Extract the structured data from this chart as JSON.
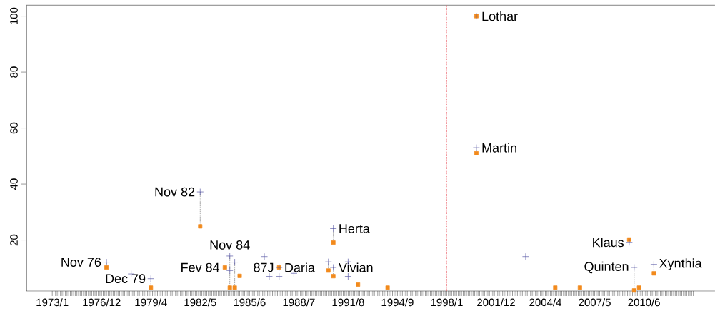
{
  "chart_data": {
    "type": "scatter",
    "categories": [
      "1973/1",
      null,
      null,
      null,
      null,
      null,
      null,
      null,
      null,
      null,
      "1976/12",
      null,
      null,
      null,
      null,
      null,
      null,
      null,
      null,
      null,
      "1979/4",
      null,
      null,
      null,
      null,
      null,
      null,
      null,
      null,
      null,
      "1982/5",
      null,
      null,
      null,
      null,
      null,
      null,
      null,
      null,
      null,
      "1985/6",
      null,
      null,
      null,
      null,
      null,
      null,
      null,
      null,
      null,
      "1988/7",
      null,
      null,
      null,
      null,
      null,
      null,
      null,
      null,
      null,
      "1991/8",
      null,
      null,
      null,
      null,
      null,
      null,
      null,
      null,
      null,
      "1994/9",
      null,
      null,
      null,
      null,
      null,
      null,
      null,
      null,
      null,
      "1998/1",
      null,
      null,
      null,
      null,
      null,
      null,
      null,
      null,
      null,
      "2001/12",
      null,
      null,
      null,
      null,
      null,
      null,
      null,
      null,
      null,
      "2004/4",
      null,
      null,
      null,
      null,
      null,
      null,
      null,
      null,
      null,
      "2007/5",
      null,
      null,
      null,
      null,
      null,
      null,
      null,
      null,
      null,
      "2010/6",
      null,
      null,
      null,
      null,
      null,
      null,
      null,
      null,
      null,
      null
    ],
    "ylim": [
      1.8,
      103.9
    ],
    "yticks": [
      20,
      40,
      60,
      80,
      100
    ],
    "series": [
      {
        "color": "#5a5aa6",
        "marker": "cross",
        "values": [
          null,
          null,
          null,
          null,
          null,
          null,
          null,
          null,
          null,
          null,
          null,
          12.1,
          null,
          null,
          null,
          null,
          7.9,
          null,
          null,
          null,
          6.2,
          null,
          null,
          null,
          null,
          null,
          null,
          null,
          null,
          null,
          37.2,
          null,
          null,
          null,
          null,
          null,
          14.3,
          12.1,
          null,
          null,
          null,
          null,
          null,
          14.1,
          7.0,
          null,
          10.2,
          null,
          null,
          8.1,
          null,
          null,
          null,
          null,
          null,
          null,
          12.2,
          24.1,
          null,
          null,
          12.2,
          null,
          null,
          null,
          null,
          null,
          null,
          null,
          null,
          null,
          null,
          null,
          null,
          null,
          null,
          null,
          null,
          null,
          null,
          null,
          null,
          null,
          null,
          null,
          null,
          null,
          100,
          null,
          null,
          null,
          null,
          null,
          null,
          null,
          null,
          null,
          14.1,
          null,
          null,
          null,
          null,
          null,
          null,
          null,
          null,
          null,
          null,
          null,
          null,
          null,
          null,
          null,
          null,
          null,
          null,
          null,
          null,
          19.2,
          10.2,
          null,
          null,
          null,
          11.3,
          null,
          null,
          null,
          null,
          null,
          null,
          null,
          null
        ]
      },
      {
        "color": "#5a5aa6",
        "marker": "cross",
        "values": [
          null,
          null,
          null,
          null,
          null,
          null,
          null,
          null,
          null,
          null,
          null,
          null,
          null,
          null,
          null,
          null,
          null,
          null,
          null,
          null,
          null,
          null,
          null,
          null,
          null,
          null,
          null,
          null,
          null,
          null,
          null,
          null,
          null,
          null,
          null,
          null,
          9.1,
          null,
          null,
          null,
          null,
          null,
          null,
          null,
          null,
          null,
          7.0,
          null,
          null,
          null,
          null,
          null,
          null,
          null,
          null,
          null,
          null,
          10.2,
          null,
          null,
          7.0,
          null,
          null,
          null,
          null,
          null,
          null,
          null,
          null,
          null,
          null,
          null,
          null,
          null,
          null,
          null,
          null,
          null,
          null,
          null,
          null,
          null,
          null,
          null,
          null,
          null,
          53.0,
          null,
          null,
          null,
          null,
          null,
          null,
          null,
          null,
          null,
          null,
          null,
          null,
          null,
          null,
          null,
          null,
          null,
          null,
          null,
          null,
          null,
          null,
          null,
          null,
          null,
          null,
          null,
          null,
          null,
          null,
          null,
          null,
          null,
          null,
          null,
          null,
          null,
          null,
          null,
          null,
          null,
          null,
          null,
          null
        ]
      },
      {
        "color": "#f28a1c",
        "marker": "square",
        "values": [
          null,
          null,
          null,
          null,
          null,
          null,
          null,
          null,
          null,
          null,
          null,
          10.2,
          null,
          null,
          null,
          null,
          null,
          null,
          null,
          null,
          3.0,
          null,
          null,
          null,
          null,
          null,
          null,
          null,
          null,
          null,
          24.9,
          null,
          null,
          null,
          null,
          10.2,
          3.0,
          3.0,
          7.2,
          null,
          null,
          null,
          null,
          null,
          null,
          null,
          10.2,
          null,
          null,
          null,
          null,
          null,
          null,
          null,
          null,
          null,
          9.1,
          19.1,
          null,
          null,
          null,
          null,
          4.1,
          null,
          null,
          null,
          null,
          null,
          3.0,
          null,
          null,
          null,
          null,
          null,
          null,
          null,
          null,
          null,
          null,
          null,
          null,
          null,
          null,
          null,
          null,
          null,
          100,
          null,
          null,
          null,
          null,
          null,
          null,
          null,
          null,
          null,
          null,
          null,
          null,
          null,
          null,
          null,
          3.0,
          null,
          null,
          null,
          null,
          3.0,
          null,
          null,
          null,
          null,
          null,
          null,
          null,
          null,
          null,
          20.2,
          2.0,
          3.0,
          null,
          null,
          8.1,
          null,
          null,
          null,
          null,
          null,
          null,
          null,
          null
        ]
      },
      {
        "color": "#f28a1c",
        "marker": "square",
        "values": [
          null,
          null,
          null,
          null,
          null,
          null,
          null,
          null,
          null,
          null,
          null,
          null,
          null,
          null,
          null,
          null,
          null,
          null,
          null,
          null,
          null,
          null,
          null,
          null,
          null,
          null,
          null,
          null,
          null,
          null,
          null,
          null,
          null,
          null,
          null,
          null,
          null,
          null,
          null,
          null,
          null,
          null,
          null,
          null,
          null,
          null,
          null,
          null,
          null,
          null,
          null,
          null,
          null,
          null,
          null,
          null,
          null,
          7.1,
          null,
          null,
          null,
          null,
          null,
          null,
          null,
          null,
          null,
          null,
          null,
          null,
          null,
          null,
          null,
          null,
          null,
          null,
          null,
          null,
          null,
          null,
          null,
          null,
          null,
          null,
          null,
          null,
          51.0,
          null,
          null,
          null,
          null,
          null,
          null,
          null,
          null,
          null,
          null,
          null,
          null,
          null,
          null,
          null,
          null,
          null,
          null,
          null,
          null,
          null,
          null,
          null,
          null,
          null,
          null,
          null,
          null,
          null,
          null,
          null,
          null,
          null,
          null,
          null,
          null,
          null,
          null,
          null,
          null,
          null,
          null,
          null,
          null
        ]
      }
    ],
    "ref_lines": [
      {
        "axis": "x",
        "value": "1998/1",
        "color": "#e8505a",
        "line_style": "dotted"
      }
    ],
    "annotations": [
      "Nov 76",
      "Dec 79",
      "Nov 82",
      "Fev 84",
      "Nov 84",
      "87J",
      "Daria",
      "Herta",
      "Vivian",
      "Lothar",
      "Martin",
      "Klaus",
      "Quinten",
      "Xynthia"
    ]
  }
}
